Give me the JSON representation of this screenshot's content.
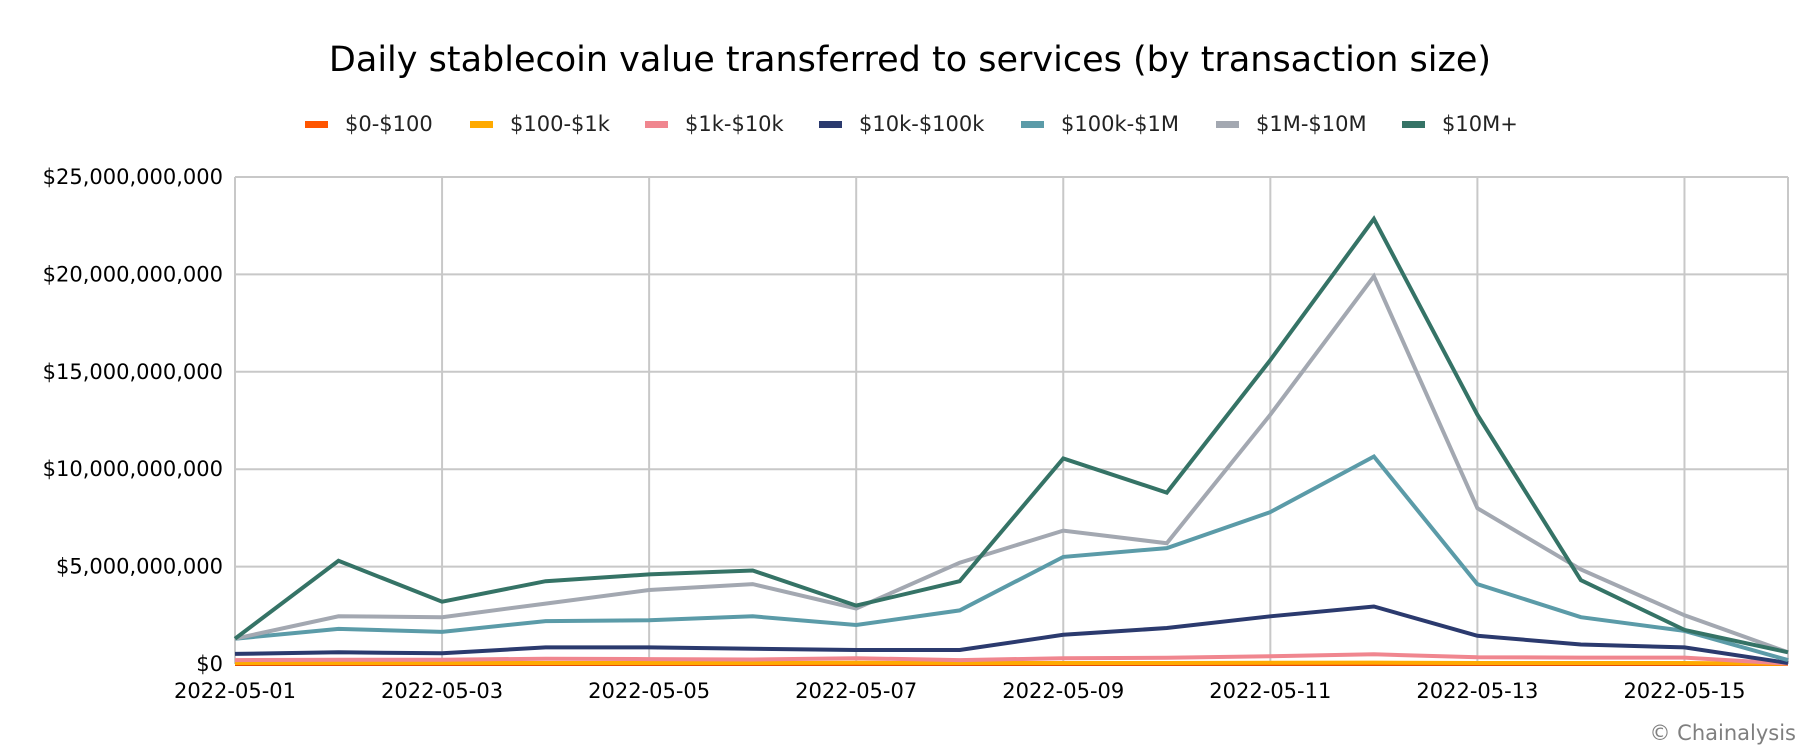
{
  "chart_data": {
    "type": "line",
    "title": "Daily stablecoin value transferred to services (by transaction size)",
    "xlabel": "",
    "ylabel": "",
    "x": [
      "2022-05-01",
      "2022-05-02",
      "2022-05-03",
      "2022-05-04",
      "2022-05-05",
      "2022-05-06",
      "2022-05-07",
      "2022-05-08",
      "2022-05-09",
      "2022-05-10",
      "2022-05-11",
      "2022-05-12",
      "2022-05-13",
      "2022-05-14",
      "2022-05-15",
      "2022-05-16"
    ],
    "x_tick_labels": [
      "2022-05-01",
      "2022-05-03",
      "2022-05-05",
      "2022-05-07",
      "2022-05-09",
      "2022-05-11",
      "2022-05-13",
      "2022-05-15"
    ],
    "ylim": [
      0,
      25000000000
    ],
    "y_ticks": [
      0,
      5000000000,
      10000000000,
      15000000000,
      20000000000,
      25000000000
    ],
    "y_tick_labels": [
      "$0",
      "$5,000,000,000",
      "$10,000,000,000",
      "$15,000,000,000",
      "$20,000,000,000",
      "$25,000,000,000"
    ],
    "grid": true,
    "legend_position": "top-center",
    "series": [
      {
        "name": "$0-$100",
        "color": "#ff5500",
        "values": [
          5000000,
          5000000,
          5000000,
          5000000,
          5000000,
          5000000,
          5000000,
          5000000,
          5000000,
          5000000,
          5000000,
          6000000,
          5000000,
          5000000,
          5000000,
          1000000
        ]
      },
      {
        "name": "$100-$1k",
        "color": "#ffaa00",
        "values": [
          50000000,
          50000000,
          50000000,
          50000000,
          50000000,
          50000000,
          60000000,
          50000000,
          50000000,
          50000000,
          60000000,
          70000000,
          50000000,
          50000000,
          50000000,
          10000000
        ]
      },
      {
        "name": "$1k-$10k",
        "color": "#f0868f",
        "values": [
          200000000,
          220000000,
          220000000,
          270000000,
          250000000,
          230000000,
          300000000,
          200000000,
          300000000,
          320000000,
          400000000,
          500000000,
          350000000,
          330000000,
          330000000,
          20000000
        ]
      },
      {
        "name": "$10k-$100k",
        "color": "#2b3a6e",
        "values": [
          520000000,
          600000000,
          550000000,
          850000000,
          850000000,
          780000000,
          720000000,
          720000000,
          1500000000,
          1850000000,
          2450000000,
          2950000000,
          1450000000,
          1000000000,
          850000000,
          50000000
        ]
      },
      {
        "name": "$100k-$1M",
        "color": "#5b9ba8",
        "values": [
          1300000000,
          1800000000,
          1650000000,
          2200000000,
          2250000000,
          2450000000,
          2000000000,
          2750000000,
          5500000000,
          5950000000,
          7800000000,
          10650000000,
          4100000000,
          2400000000,
          1700000000,
          200000000
        ]
      },
      {
        "name": "$1M-$10M",
        "color": "#a3a8b1",
        "values": [
          1300000000,
          2450000000,
          2400000000,
          3100000000,
          3800000000,
          4100000000,
          2850000000,
          5200000000,
          6850000000,
          6200000000,
          12800000000,
          19900000000,
          8000000000,
          4850000000,
          2500000000,
          600000000
        ]
      },
      {
        "name": "$10M+",
        "color": "#357366",
        "values": [
          1300000000,
          5300000000,
          3200000000,
          4250000000,
          4600000000,
          4800000000,
          3000000000,
          4250000000,
          10550000000,
          8800000000,
          15600000000,
          22850000000,
          12800000000,
          4300000000,
          1750000000,
          600000000
        ]
      }
    ]
  },
  "copyright": "© Chainalysis"
}
